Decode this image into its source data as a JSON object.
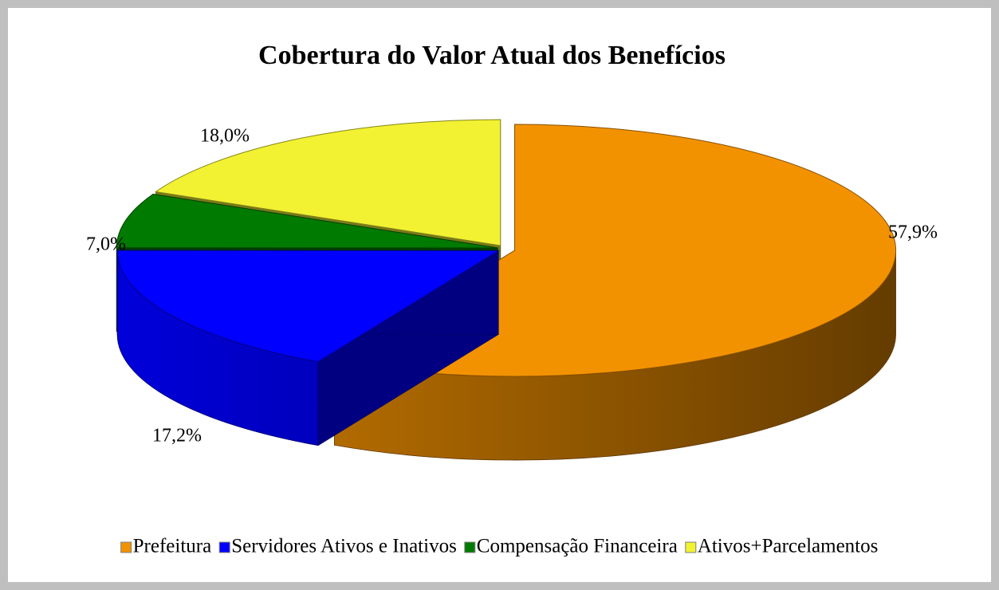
{
  "chart_data": {
    "type": "pie3d",
    "title": "Cobertura do Valor Atual dos Benefícios",
    "categories": [
      "Prefeitura",
      "Servidores Ativos e Inativos",
      "Compensação Financeira",
      "Ativos+Parcelamentos"
    ],
    "values": [
      57.9,
      17.2,
      7.0,
      18.0
    ],
    "value_labels": [
      "57,9%",
      "17,2%",
      "7,0%",
      "18,0%"
    ],
    "colors": [
      "#f39200",
      "#0000ff",
      "#007a00",
      "#f2f232"
    ],
    "legend": "bottom"
  }
}
